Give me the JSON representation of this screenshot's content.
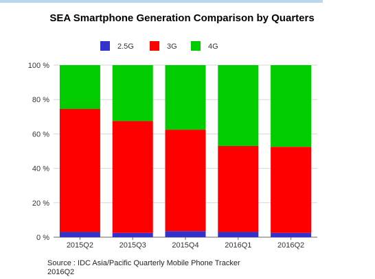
{
  "chart_data": {
    "type": "bar",
    "stacked": true,
    "title": "SEA Smartphone Generation Comparison by Quarters",
    "xlabel": "",
    "ylabel": "",
    "categories": [
      "2015Q2",
      "2015Q3",
      "2015Q4",
      "2016Q1",
      "2016Q2"
    ],
    "series": [
      {
        "name": "2.5G",
        "color": "#3333cc",
        "values": [
          3.0,
          2.5,
          3.5,
          3.0,
          2.5
        ]
      },
      {
        "name": "3G",
        "color": "#ff0000",
        "values": [
          71.5,
          65.0,
          59.0,
          50.0,
          50.0
        ]
      },
      {
        "name": "4G",
        "color": "#00cc00",
        "values": [
          25.5,
          32.5,
          37.5,
          47.0,
          47.5
        ]
      }
    ],
    "ylim": [
      0,
      100
    ],
    "yticks": [
      "0 %",
      "20 %",
      "40 %",
      "60 %",
      "80 %",
      "100 %"
    ],
    "grid": true,
    "legend_position": "top"
  },
  "source_text": "Source : IDC Asia/Pacific Quarterly Mobile Phone Tracker 2016Q2"
}
